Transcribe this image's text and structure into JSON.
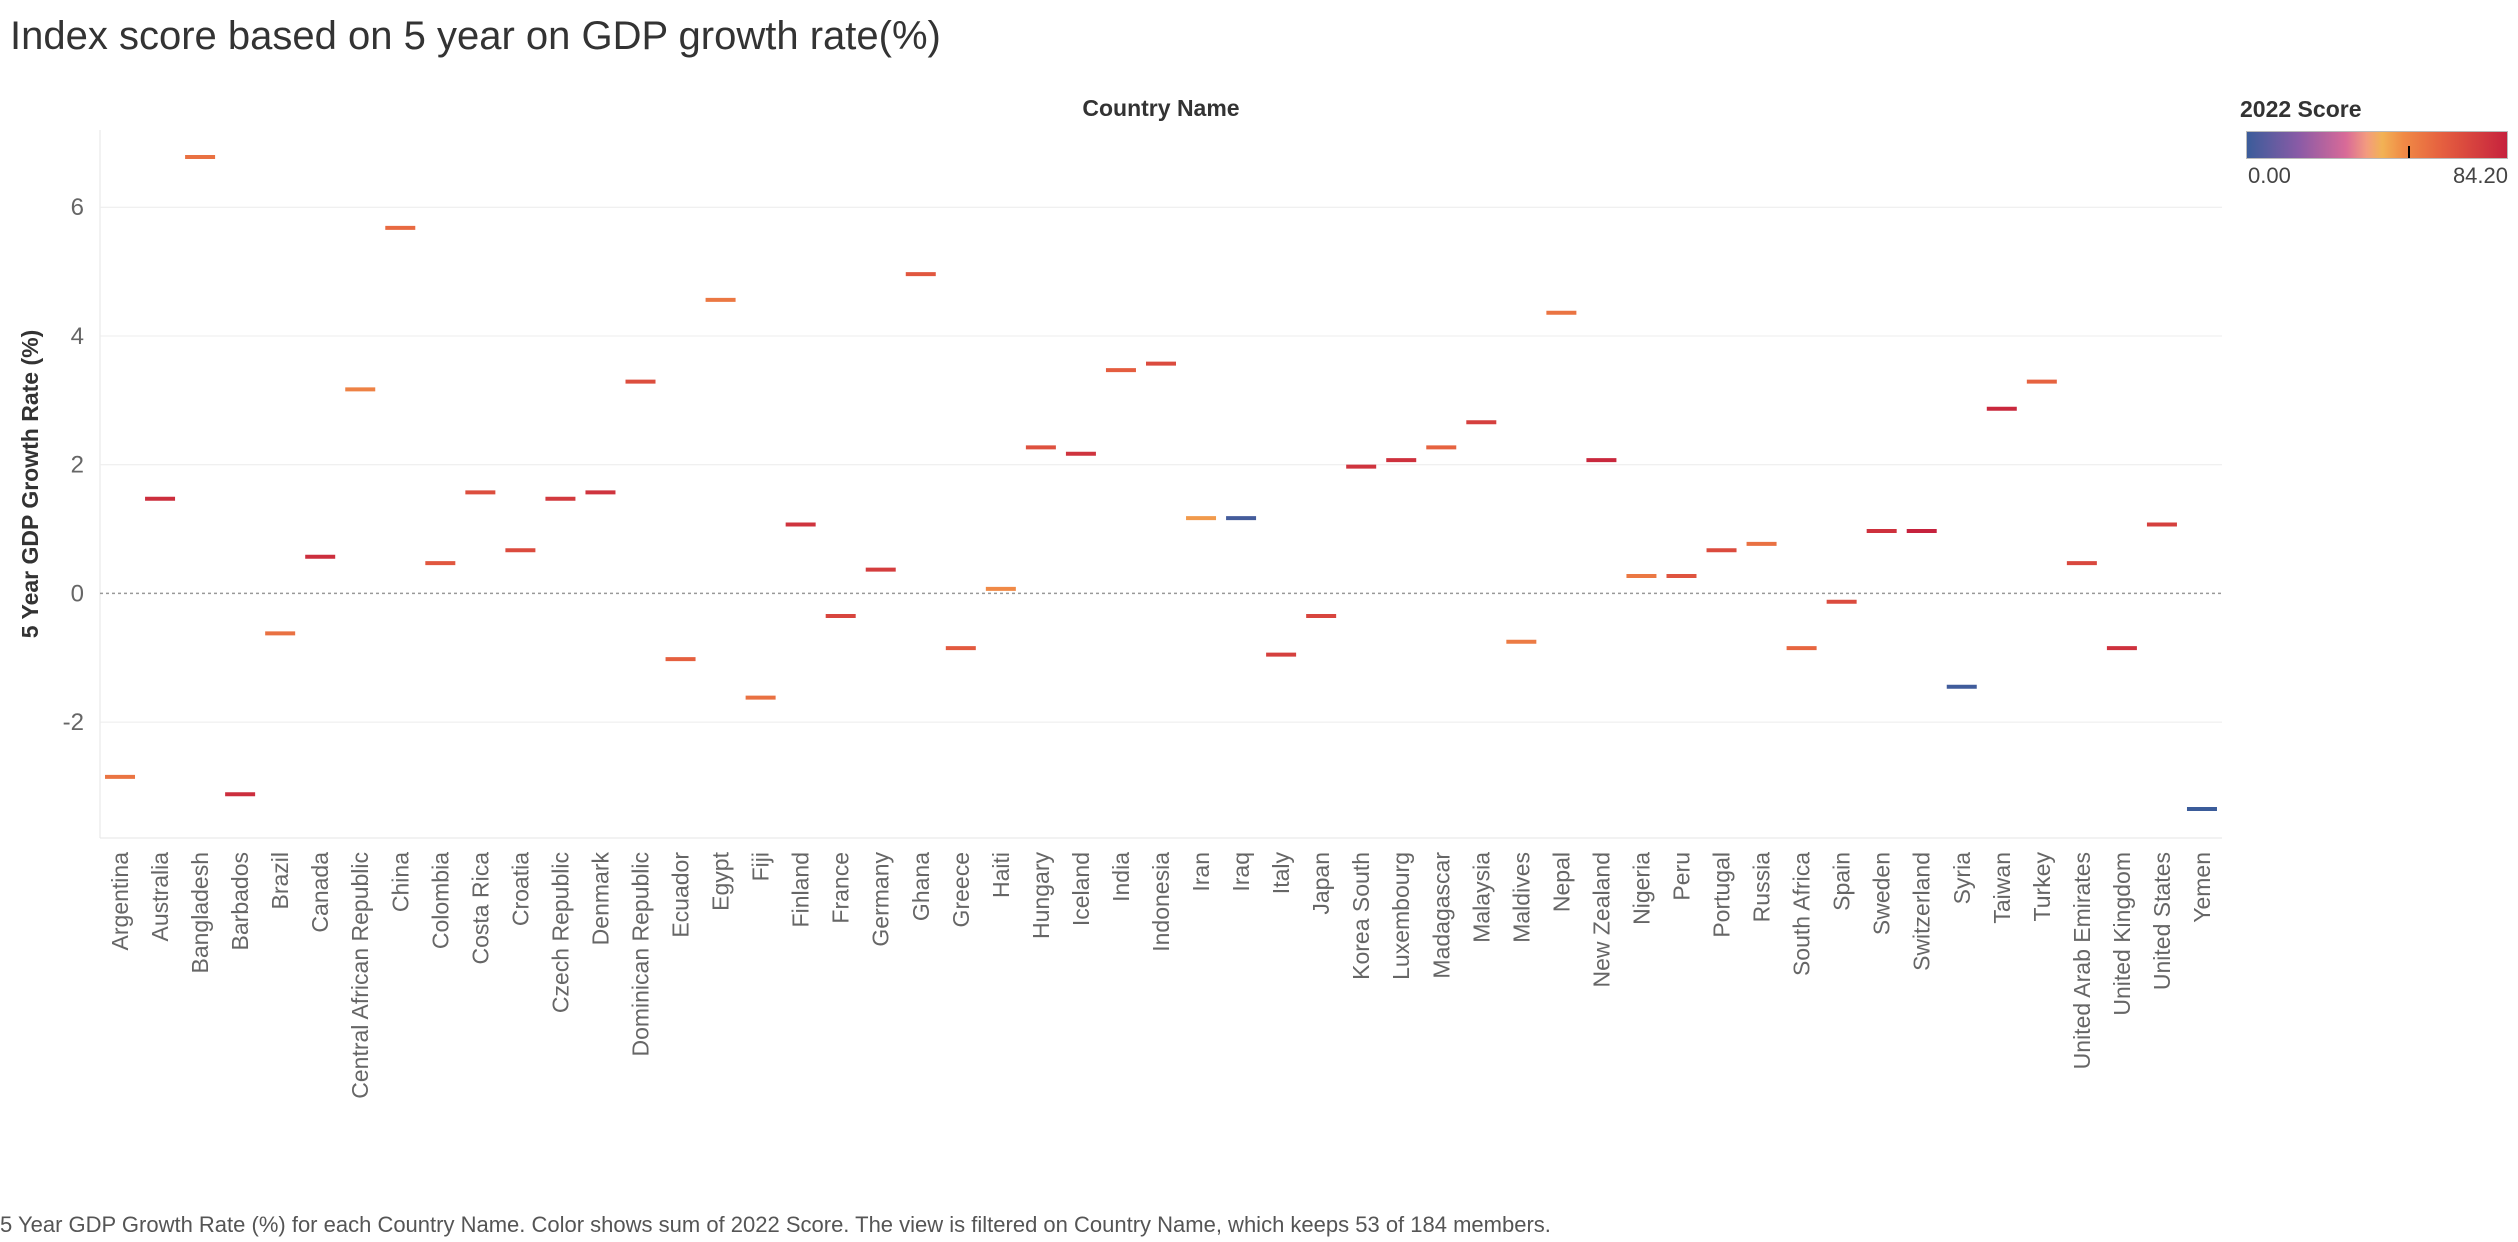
{
  "title": "Index score based on 5 year on GDP growth rate(%)",
  "caption": "5 Year GDP Growth Rate (%) for each Country Name.  Color shows sum of 2022 Score. The view is filtered on Country Name, which keeps 53 of 184 members.",
  "legend": {
    "title": "2022 Score",
    "min_label": "0.00",
    "max_label": "84.20",
    "marker_value": 52.0
  },
  "chart_data": {
    "type": "scatter",
    "mark": "dash",
    "xlabel": "Country Name",
    "ylabel": "5 Year GDP Growth Rate (%)",
    "ylim": [
      -3.8,
      7.2
    ],
    "yticks": [
      6,
      4,
      2,
      0,
      -2
    ],
    "ytick_labels": [
      "6",
      "4",
      "2",
      "0",
      "-2"
    ],
    "zero_line": true,
    "color_by": "2022 Score",
    "color_range": [
      0,
      84.2
    ],
    "points": [
      {
        "country": "Argentina",
        "value": -2.85,
        "score": 57
      },
      {
        "country": "Australia",
        "value": 1.47,
        "score": 80
      },
      {
        "country": "Bangladesh",
        "value": 6.78,
        "score": 58
      },
      {
        "country": "Barbados",
        "value": -3.12,
        "score": 80
      },
      {
        "country": "Brazil",
        "value": -0.62,
        "score": 58
      },
      {
        "country": "Canada",
        "value": 0.57,
        "score": 80
      },
      {
        "country": "Central African Republic",
        "value": 3.17,
        "score": 53
      },
      {
        "country": "China",
        "value": 5.68,
        "score": 60
      },
      {
        "country": "Colombia",
        "value": 0.47,
        "score": 66
      },
      {
        "country": "Costa Rica",
        "value": 1.57,
        "score": 69
      },
      {
        "country": "Croatia",
        "value": 0.67,
        "score": 70
      },
      {
        "country": "Czech Republic",
        "value": 1.47,
        "score": 76
      },
      {
        "country": "Denmark",
        "value": 1.57,
        "score": 78
      },
      {
        "country": "Dominican Republic",
        "value": 3.29,
        "score": 69
      },
      {
        "country": "Ecuador",
        "value": -1.02,
        "score": 63
      },
      {
        "country": "Egypt",
        "value": 4.56,
        "score": 56
      },
      {
        "country": "Fiji",
        "value": -1.62,
        "score": 58
      },
      {
        "country": "Finland",
        "value": 1.07,
        "score": 78
      },
      {
        "country": "France",
        "value": -0.35,
        "score": 72
      },
      {
        "country": "Germany",
        "value": 0.37,
        "score": 75
      },
      {
        "country": "Ghana",
        "value": 4.96,
        "score": 66
      },
      {
        "country": "Greece",
        "value": -0.85,
        "score": 65
      },
      {
        "country": "Haiti",
        "value": 0.07,
        "score": 51
      },
      {
        "country": "Hungary",
        "value": 2.27,
        "score": 68
      },
      {
        "country": "Iceland",
        "value": 2.17,
        "score": 78
      },
      {
        "country": "India",
        "value": 3.47,
        "score": 64
      },
      {
        "country": "Indonesia",
        "value": 3.57,
        "score": 70
      },
      {
        "country": "Iran",
        "value": 1.17,
        "score": 48
      },
      {
        "country": "Iraq",
        "value": 1.17,
        "score": 2
      },
      {
        "country": "Italy",
        "value": -0.95,
        "score": 74
      },
      {
        "country": "Japan",
        "value": -0.35,
        "score": 72
      },
      {
        "country": "Korea South",
        "value": 1.97,
        "score": 78
      },
      {
        "country": "Luxembourg",
        "value": 2.07,
        "score": 79
      },
      {
        "country": "Madagascar",
        "value": 2.27,
        "score": 62
      },
      {
        "country": "Malaysia",
        "value": 2.66,
        "score": 74
      },
      {
        "country": "Maldives",
        "value": -0.75,
        "score": 55
      },
      {
        "country": "Nepal",
        "value": 4.36,
        "score": 57
      },
      {
        "country": "New Zealand",
        "value": 2.07,
        "score": 82
      },
      {
        "country": "Nigeria",
        "value": 0.27,
        "score": 56
      },
      {
        "country": "Peru",
        "value": 0.27,
        "score": 67
      },
      {
        "country": "Portugal",
        "value": 0.67,
        "score": 70
      },
      {
        "country": "Russia",
        "value": 0.77,
        "score": 58
      },
      {
        "country": "South Africa",
        "value": -0.85,
        "score": 61
      },
      {
        "country": "Spain",
        "value": -0.13,
        "score": 70
      },
      {
        "country": "Sweden",
        "value": 0.97,
        "score": 79
      },
      {
        "country": "Switzerland",
        "value": 0.97,
        "score": 84.2
      },
      {
        "country": "Syria",
        "value": -1.45,
        "score": 1
      },
      {
        "country": "Taiwan",
        "value": 2.87,
        "score": 82
      },
      {
        "country": "Turkey",
        "value": 3.29,
        "score": 62
      },
      {
        "country": "United Arab Emirates",
        "value": 0.47,
        "score": 71
      },
      {
        "country": "United Kingdom",
        "value": -0.85,
        "score": 79
      },
      {
        "country": "United States",
        "value": 1.07,
        "score": 74
      },
      {
        "country": "Yemen",
        "value": -3.35,
        "score": 0
      }
    ]
  }
}
